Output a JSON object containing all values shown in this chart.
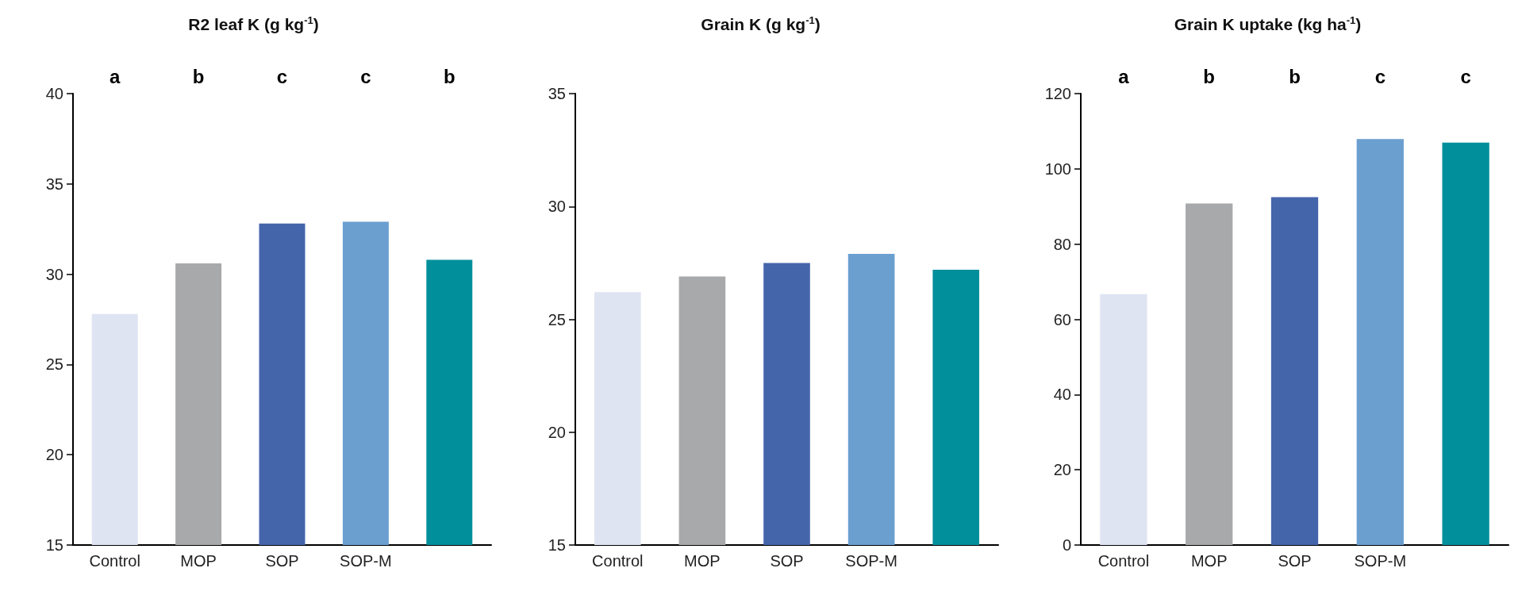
{
  "chart_data": [
    {
      "type": "bar",
      "title": "R2 leaf K (g kg$^{-1}$)",
      "categories": [
        "Control",
        "MOP",
        "SOP",
        "SOP-M",
        null
      ],
      "values": [
        27.8,
        30.6,
        32.8,
        32.9,
        30.8
      ],
      "colors": [
        "#dfe4f2",
        "#a8a9ab",
        "#4565ab",
        "#6b9fd0",
        "#018f9b"
      ],
      "ylim": [
        15,
        40
      ],
      "yticks": [
        15,
        20,
        25,
        30,
        35,
        40
      ],
      "grid": false,
      "annotations": [
        "a",
        "b",
        "c",
        "c",
        "b"
      ]
    },
    {
      "type": "bar",
      "title": "Grain K (g kg$^{-1}$)",
      "categories": [
        "Control",
        "MOP",
        "SOP",
        "SOP-M",
        null
      ],
      "values": [
        26.2,
        26.9,
        27.5,
        27.9,
        27.2
      ],
      "colors": [
        "#dfe4f2",
        "#a8a9ab",
        "#4565ab",
        "#6b9fd0",
        "#018f9b"
      ],
      "ylim": [
        15,
        35
      ],
      "yticks": [
        15,
        20,
        25,
        30,
        35
      ],
      "grid": false
    },
    {
      "type": "bar",
      "title": "Grain K uptake (kg ha$^{-1}$)",
      "categories": [
        "Control",
        "MOP",
        "SOP",
        "SOP-M",
        null
      ],
      "values": [
        66.7,
        90.8,
        92.5,
        107.9,
        107.0
      ],
      "colors": [
        "#dfe4f2",
        "#a8a9ab",
        "#4565ab",
        "#6b9fd0",
        "#018f9b"
      ],
      "ylim": [
        0,
        120
      ],
      "yticks": [
        0,
        20,
        40,
        60,
        80,
        100,
        120
      ],
      "grid": false,
      "annotations": [
        "a",
        "b",
        "b",
        "c",
        "c"
      ]
    }
  ]
}
